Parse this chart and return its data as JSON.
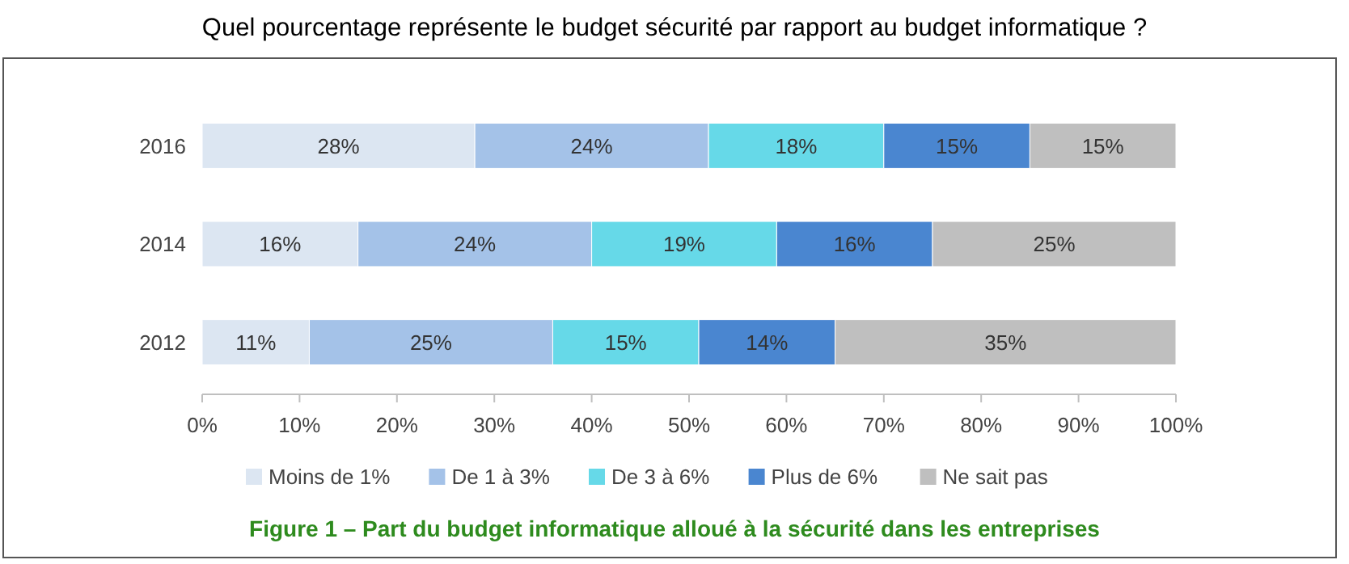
{
  "chart_data": {
    "type": "bar",
    "orientation": "horizontal",
    "stacked": true,
    "title": "Quel pourcentage représente le budget sécurité par rapport au budget informatique ?",
    "categories": [
      "2016",
      "2014",
      "2012"
    ],
    "series": [
      {
        "name": "Moins de 1%",
        "color": "#dce6f2",
        "values": [
          28,
          16,
          11
        ],
        "value_labels": [
          "28%",
          "16%",
          "11%"
        ]
      },
      {
        "name": "De 1 à 3%",
        "color": "#a4c2e8",
        "values": [
          24,
          24,
          25
        ],
        "value_labels": [
          "24%",
          "24%",
          "25%"
        ]
      },
      {
        "name": "De 3 à 6%",
        "color": "#66d9e8",
        "values": [
          18,
          19,
          15
        ],
        "value_labels": [
          "18%",
          "19%",
          "15%"
        ]
      },
      {
        "name": "Plus de 6%",
        "color": "#4a86d0",
        "values": [
          15,
          16,
          14
        ],
        "value_labels": [
          "15%",
          "16%",
          "14%"
        ]
      },
      {
        "name": "Ne sait pas",
        "color": "#bfbfbf",
        "values": [
          15,
          25,
          35
        ],
        "value_labels": [
          "15%",
          "25%",
          "35%"
        ]
      }
    ],
    "xlim": [
      0,
      100
    ],
    "xticks": [
      {
        "value": 0,
        "label": "0%"
      },
      {
        "value": 10,
        "label": "10%"
      },
      {
        "value": 20,
        "label": "20%"
      },
      {
        "value": 30,
        "label": "30%"
      },
      {
        "value": 40,
        "label": "40%"
      },
      {
        "value": 50,
        "label": "50%"
      },
      {
        "value": 60,
        "label": "60%"
      },
      {
        "value": 70,
        "label": "70%"
      },
      {
        "value": 80,
        "label": "80%"
      },
      {
        "value": 90,
        "label": "90%"
      },
      {
        "value": 100,
        "label": "100%"
      }
    ],
    "grid": false,
    "legend": "bottom",
    "annotations": [
      "Figure 1 – Part du budget informatique alloué à la sécurité dans les entreprises"
    ]
  }
}
